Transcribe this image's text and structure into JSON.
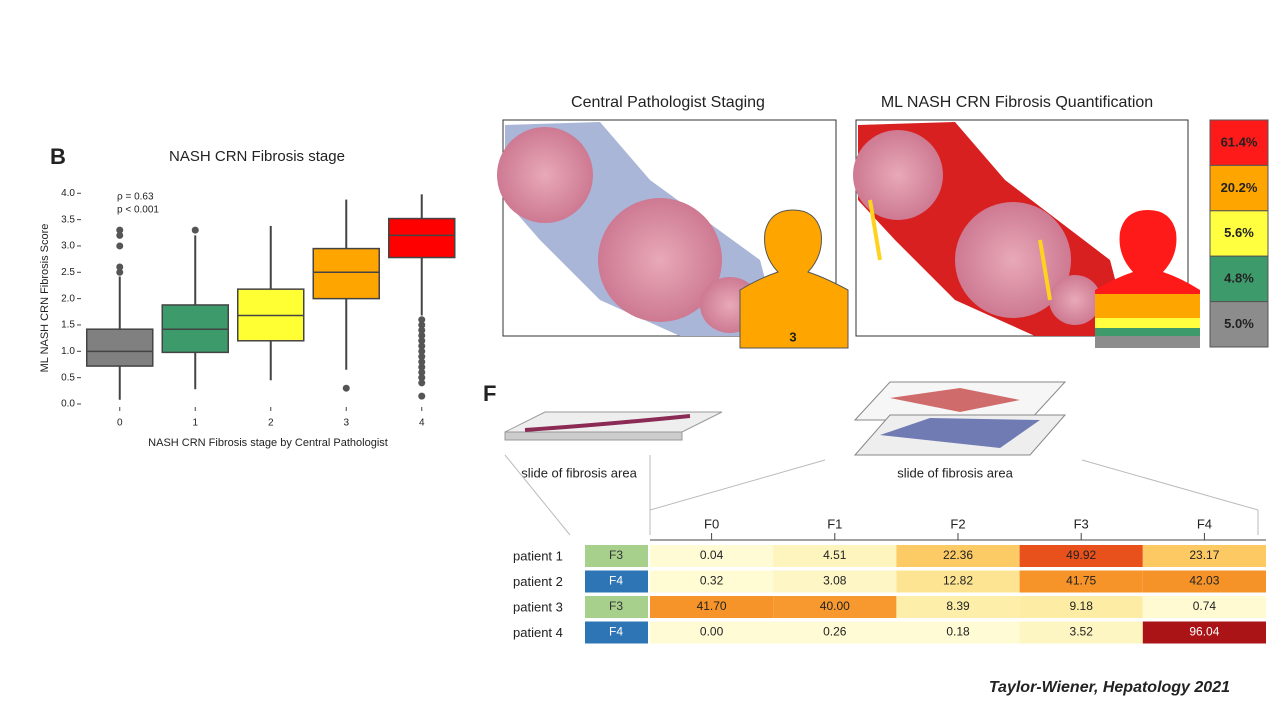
{
  "panel_b": {
    "letter": "B"
  },
  "chart_data": {
    "type": "box",
    "title": "NASH CRN Fibrosis stage",
    "x_label": "NASH CRN Fibrosis stage by Central Pathologist",
    "y_label": "ML NASH CRN Fibrosis Score",
    "annotations": [
      "ρ = 0.63",
      "p < 0.001"
    ],
    "categories": [
      "0",
      "1",
      "2",
      "3",
      "4"
    ],
    "colors": [
      "#808080",
      "#3d9a6a",
      "#ffff33",
      "#ffa500",
      "#ff0000"
    ],
    "whisker_low": [
      0.08,
      0.28,
      0.45,
      0.65,
      1.68
    ],
    "q1": [
      0.72,
      0.98,
      1.2,
      2.0,
      2.78
    ],
    "median": [
      1.0,
      1.42,
      1.68,
      2.5,
      3.2
    ],
    "q3": [
      1.42,
      1.88,
      2.18,
      2.95,
      3.52
    ],
    "whisker_high": [
      2.42,
      3.2,
      3.38,
      3.88,
      3.98
    ],
    "outliers": [
      [
        2.5,
        2.6,
        3.0,
        3.2,
        3.3
      ],
      [
        3.3
      ],
      [],
      [
        0.3
      ],
      [
        1.6,
        1.5,
        1.4,
        1.3,
        1.2,
        1.1,
        1.0,
        0.9,
        0.8,
        0.7,
        0.6,
        0.5,
        0.4,
        0.15
      ]
    ],
    "ylim": [
      0,
      4.1
    ],
    "yticks": [
      {
        "value": 0,
        "label": "0.0"
      },
      0.5,
      {
        "value": 1,
        "label": "1.0"
      },
      1.5,
      {
        "value": 2,
        "label": "2.0"
      },
      2.5,
      {
        "value": 3,
        "label": "3.0"
      },
      3.5,
      {
        "value": 4,
        "label": "4.0"
      }
    ]
  },
  "images": {
    "left_title": "Central Pathologist Staging",
    "right_title": "ML NASH CRN Fibrosis Quantification",
    "stage_badge": "3",
    "legend": [
      {
        "label": "61.4%",
        "color": "#ff1a1a"
      },
      {
        "label": "20.2%",
        "color": "#ffa500"
      },
      {
        "label": "5.6%",
        "color": "#ffff40"
      },
      {
        "label": "4.8%",
        "color": "#3d9a6a"
      },
      {
        "label": "5.0%",
        "color": "#8c8c8c"
      }
    ]
  },
  "panel_f": {
    "letter": "F",
    "caption_left": "slide of fibrosis area",
    "caption_right": "slide of fibrosis area",
    "table": {
      "columns": [
        "F0",
        "F1",
        "F2",
        "F3",
        "F4"
      ],
      "rows": [
        {
          "name": "patient 1",
          "stage": "F3",
          "stage_color": "#a8d08d",
          "values": [
            "0.04",
            "4.51",
            "22.36",
            "49.92",
            "23.17"
          ]
        },
        {
          "name": "patient 2",
          "stage": "F4",
          "stage_color": "#2e75b6",
          "values": [
            "0.32",
            "3.08",
            "12.82",
            "41.75",
            "42.03"
          ]
        },
        {
          "name": "patient 3",
          "stage": "F3",
          "stage_color": "#a8d08d",
          "values": [
            "41.70",
            "40.00",
            "8.39",
            "9.18",
            "0.74"
          ]
        },
        {
          "name": "patient 4",
          "stage": "F4",
          "stage_color": "#2e75b6",
          "values": [
            "0.00",
            "0.26",
            "0.18",
            "3.52",
            "96.04"
          ]
        }
      ]
    }
  },
  "citation": "Taylor-Wiener, Hepatology 2021"
}
